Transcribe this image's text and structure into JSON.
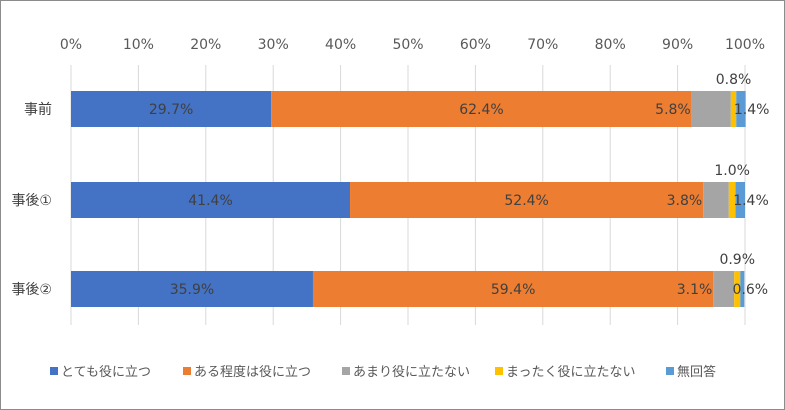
{
  "chart_data": {
    "type": "bar",
    "orientation": "horizontal",
    "stacked": "percent",
    "categories": [
      "事前",
      "事後①",
      "事後②"
    ],
    "series": [
      {
        "name": "とても役に立つ",
        "color": "#4472C4",
        "values": [
          29.7,
          41.4,
          35.9
        ],
        "labels": [
          "29.7%",
          "41.4%",
          "35.9%"
        ]
      },
      {
        "name": "ある程度は役に立つ",
        "color": "#ED7D31",
        "values": [
          62.4,
          52.4,
          59.4
        ],
        "labels": [
          "62.4%",
          "52.4%",
          "59.4%"
        ]
      },
      {
        "name": "あまり役に立たない",
        "color": "#A5A5A5",
        "values": [
          5.8,
          3.8,
          3.1
        ],
        "labels": [
          "5.8%",
          "3.8%",
          "3.1%"
        ]
      },
      {
        "name": "まったく役に立たない",
        "color": "#FFC000",
        "values": [
          0.8,
          1.0,
          0.9
        ],
        "labels": [
          "0.8%",
          "1.0%",
          "0.9%"
        ]
      },
      {
        "name": "無回答",
        "color": "#5B9BD5",
        "values": [
          1.4,
          1.4,
          0.6
        ],
        "labels": [
          "1.4%",
          "1.4%",
          "0.6%"
        ]
      }
    ],
    "xlim": [
      0,
      100
    ],
    "xticks": [
      "0%",
      "10%",
      "20%",
      "30%",
      "40%",
      "50%",
      "60%",
      "70%",
      "80%",
      "90%",
      "100%"
    ],
    "grid": true,
    "legend": "bottom"
  }
}
